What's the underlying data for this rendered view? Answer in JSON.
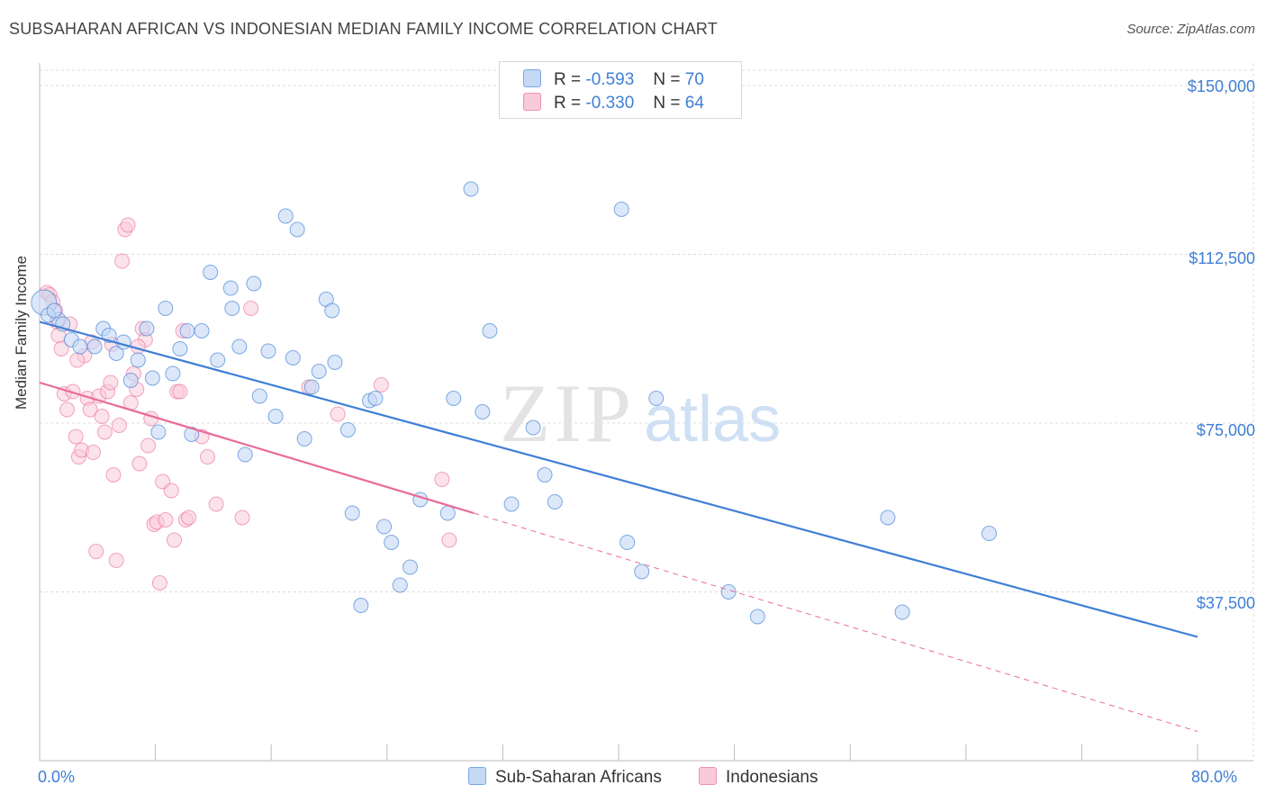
{
  "title": "SUBSAHARAN AFRICAN VS INDONESIAN MEDIAN FAMILY INCOME CORRELATION CHART",
  "source": "Source: ZipAtlas.com",
  "watermark": {
    "zip": "ZIP",
    "atlas": "atlas"
  },
  "legend": {
    "r_label": "R =",
    "n_label": "N =",
    "series1": {
      "r": "-0.593",
      "n": "70"
    },
    "series2": {
      "r": "-0.330",
      "n": "64"
    }
  },
  "bottom_legend": {
    "series1": "Sub-Saharan Africans",
    "series2": "Indonesians"
  },
  "colors": {
    "blue": "#3f7fd6",
    "blue_fill": "#c4d9f5",
    "pink": "#e96b9a",
    "pink_fill": "#f9cad9"
  },
  "chart_data": {
    "type": "scatter",
    "title": "SUBSAHARAN AFRICAN VS INDONESIAN MEDIAN FAMILY INCOME CORRELATION CHART",
    "xlabel": "",
    "ylabel": "Median Family Income",
    "xlim": [
      0,
      80
    ],
    "ylim": [
      0,
      155000
    ],
    "x_tick_labels": [
      "0.0%",
      "80.0%"
    ],
    "y_ticks": [
      37500,
      75000,
      112500,
      150000
    ],
    "y_tick_labels": [
      "$37,500",
      "$75,000",
      "$112,500",
      "$150,000"
    ],
    "grid": true,
    "series": [
      {
        "name": "Sub-Saharan Africans",
        "r": -0.593,
        "n": 70,
        "trend": {
          "x": [
            0,
            80
          ],
          "y": [
            97500,
            27500
          ]
        },
        "points": [
          [
            0.3,
            101800
          ],
          [
            1.3,
            98000
          ],
          [
            1.6,
            97000
          ],
          [
            2.2,
            93500
          ],
          [
            2.8,
            92000
          ],
          [
            3.8,
            92000
          ],
          [
            4.4,
            96000
          ],
          [
            4.8,
            94500
          ],
          [
            5.3,
            90500
          ],
          [
            5.8,
            93000
          ],
          [
            6.3,
            84500
          ],
          [
            6.8,
            89000
          ],
          [
            7.4,
            96000
          ],
          [
            7.8,
            85000
          ],
          [
            8.2,
            73000
          ],
          [
            8.7,
            100500
          ],
          [
            9.2,
            86000
          ],
          [
            9.7,
            91500
          ],
          [
            10.2,
            95500
          ],
          [
            10.5,
            72500
          ],
          [
            11.2,
            95500
          ],
          [
            11.8,
            108500
          ],
          [
            12.3,
            89000
          ],
          [
            13.2,
            105000
          ],
          [
            13.3,
            100500
          ],
          [
            13.8,
            92000
          ],
          [
            14.2,
            68000
          ],
          [
            14.8,
            106000
          ],
          [
            15.2,
            81000
          ],
          [
            15.8,
            91000
          ],
          [
            16.3,
            76500
          ],
          [
            17.0,
            121000
          ],
          [
            17.5,
            89500
          ],
          [
            17.8,
            118000
          ],
          [
            18.3,
            71500
          ],
          [
            18.8,
            83000
          ],
          [
            19.3,
            86500
          ],
          [
            19.8,
            102500
          ],
          [
            20.2,
            100000
          ],
          [
            20.4,
            88500
          ],
          [
            21.3,
            73500
          ],
          [
            21.6,
            55000
          ],
          [
            22.2,
            34500
          ],
          [
            22.8,
            80000
          ],
          [
            23.2,
            80500
          ],
          [
            23.8,
            52000
          ],
          [
            24.3,
            48500
          ],
          [
            24.9,
            39000
          ],
          [
            25.6,
            43000
          ],
          [
            26.3,
            58000
          ],
          [
            28.2,
            55000
          ],
          [
            28.6,
            80500
          ],
          [
            29.8,
            127000
          ],
          [
            30.6,
            77500
          ],
          [
            31.1,
            95500
          ],
          [
            32.6,
            57000
          ],
          [
            34.1,
            74000
          ],
          [
            34.9,
            63500
          ],
          [
            35.6,
            57500
          ],
          [
            40.2,
            122500
          ],
          [
            40.6,
            48500
          ],
          [
            41.6,
            42000
          ],
          [
            42.6,
            80500
          ],
          [
            47.6,
            37500
          ],
          [
            49.6,
            32000
          ],
          [
            58.6,
            54000
          ],
          [
            59.6,
            33000
          ],
          [
            65.6,
            50500
          ],
          [
            0.6,
            99000
          ],
          [
            1.0,
            100000
          ]
        ]
      },
      {
        "name": "Indonesians",
        "r": -0.33,
        "n": 64,
        "trend": {
          "x": [
            0,
            30
          ],
          "y": [
            84000,
            55000
          ]
        },
        "trend_dashed": {
          "x": [
            30,
            80
          ],
          "y": [
            55000,
            6500
          ]
        },
        "points": [
          [
            0.5,
            104000
          ],
          [
            0.7,
            103500
          ],
          [
            0.9,
            102000
          ],
          [
            1.1,
            100000
          ],
          [
            1.3,
            94500
          ],
          [
            1.5,
            91500
          ],
          [
            1.7,
            81500
          ],
          [
            1.9,
            78000
          ],
          [
            2.1,
            97000
          ],
          [
            2.3,
            82000
          ],
          [
            2.5,
            72000
          ],
          [
            2.7,
            67500
          ],
          [
            2.9,
            69000
          ],
          [
            3.1,
            90000
          ],
          [
            3.3,
            80500
          ],
          [
            3.5,
            78000
          ],
          [
            3.7,
            68500
          ],
          [
            3.9,
            46500
          ],
          [
            4.1,
            81000
          ],
          [
            4.3,
            76500
          ],
          [
            4.5,
            73000
          ],
          [
            4.7,
            82000
          ],
          [
            4.9,
            84000
          ],
          [
            5.1,
            63500
          ],
          [
            5.3,
            44500
          ],
          [
            5.5,
            74500
          ],
          [
            5.7,
            111000
          ],
          [
            5.9,
            118000
          ],
          [
            6.1,
            119000
          ],
          [
            6.3,
            79500
          ],
          [
            6.5,
            86000
          ],
          [
            6.7,
            82500
          ],
          [
            6.9,
            66000
          ],
          [
            7.1,
            96000
          ],
          [
            7.3,
            93500
          ],
          [
            7.5,
            70000
          ],
          [
            7.7,
            76000
          ],
          [
            7.9,
            52500
          ],
          [
            8.1,
            53000
          ],
          [
            8.3,
            39500
          ],
          [
            8.5,
            62000
          ],
          [
            8.7,
            53500
          ],
          [
            9.1,
            60000
          ],
          [
            9.3,
            49000
          ],
          [
            9.5,
            82000
          ],
          [
            9.7,
            82000
          ],
          [
            9.9,
            95500
          ],
          [
            10.1,
            53500
          ],
          [
            10.3,
            54000
          ],
          [
            11.2,
            72000
          ],
          [
            11.6,
            67500
          ],
          [
            12.2,
            57000
          ],
          [
            14.0,
            54000
          ],
          [
            14.6,
            100500
          ],
          [
            18.6,
            83000
          ],
          [
            20.6,
            77000
          ],
          [
            23.6,
            83500
          ],
          [
            27.8,
            62500
          ],
          [
            28.3,
            49000
          ],
          [
            2.6,
            89000
          ],
          [
            1.2,
            97500
          ],
          [
            3.6,
            93000
          ],
          [
            5.0,
            92500
          ],
          [
            6.8,
            92000
          ]
        ]
      }
    ]
  }
}
